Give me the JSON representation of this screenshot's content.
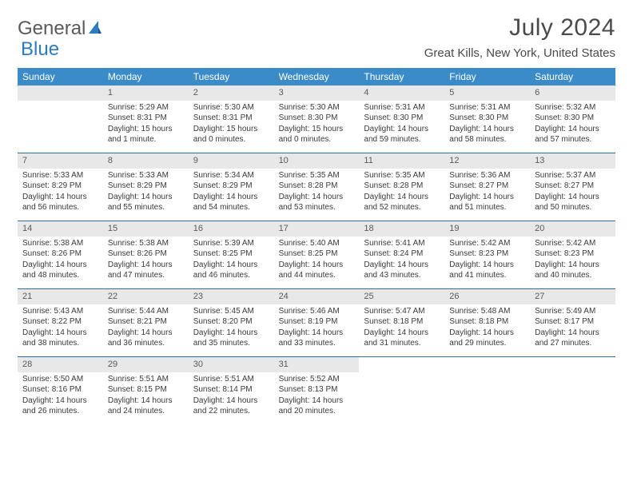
{
  "logo": {
    "part1": "General",
    "part2": "Blue"
  },
  "title": "July 2024",
  "location": "Great Kills, New York, United States",
  "colors": {
    "header_bg": "#3b8bc9",
    "header_text": "#ffffff",
    "daynum_bg": "#e8e8e8",
    "week_divider": "#2e6da8",
    "text": "#3a3a3a",
    "logo_blue": "#2e7cc0",
    "logo_gray": "#5a5a5a"
  },
  "days_of_week": [
    "Sunday",
    "Monday",
    "Tuesday",
    "Wednesday",
    "Thursday",
    "Friday",
    "Saturday"
  ],
  "weeks": [
    [
      {
        "n": "",
        "sun": "",
        "set": "",
        "dl": ""
      },
      {
        "n": "1",
        "sun": "Sunrise: 5:29 AM",
        "set": "Sunset: 8:31 PM",
        "dl": "Daylight: 15 hours and 1 minute."
      },
      {
        "n": "2",
        "sun": "Sunrise: 5:30 AM",
        "set": "Sunset: 8:31 PM",
        "dl": "Daylight: 15 hours and 0 minutes."
      },
      {
        "n": "3",
        "sun": "Sunrise: 5:30 AM",
        "set": "Sunset: 8:30 PM",
        "dl": "Daylight: 15 hours and 0 minutes."
      },
      {
        "n": "4",
        "sun": "Sunrise: 5:31 AM",
        "set": "Sunset: 8:30 PM",
        "dl": "Daylight: 14 hours and 59 minutes."
      },
      {
        "n": "5",
        "sun": "Sunrise: 5:31 AM",
        "set": "Sunset: 8:30 PM",
        "dl": "Daylight: 14 hours and 58 minutes."
      },
      {
        "n": "6",
        "sun": "Sunrise: 5:32 AM",
        "set": "Sunset: 8:30 PM",
        "dl": "Daylight: 14 hours and 57 minutes."
      }
    ],
    [
      {
        "n": "7",
        "sun": "Sunrise: 5:33 AM",
        "set": "Sunset: 8:29 PM",
        "dl": "Daylight: 14 hours and 56 minutes."
      },
      {
        "n": "8",
        "sun": "Sunrise: 5:33 AM",
        "set": "Sunset: 8:29 PM",
        "dl": "Daylight: 14 hours and 55 minutes."
      },
      {
        "n": "9",
        "sun": "Sunrise: 5:34 AM",
        "set": "Sunset: 8:29 PM",
        "dl": "Daylight: 14 hours and 54 minutes."
      },
      {
        "n": "10",
        "sun": "Sunrise: 5:35 AM",
        "set": "Sunset: 8:28 PM",
        "dl": "Daylight: 14 hours and 53 minutes."
      },
      {
        "n": "11",
        "sun": "Sunrise: 5:35 AM",
        "set": "Sunset: 8:28 PM",
        "dl": "Daylight: 14 hours and 52 minutes."
      },
      {
        "n": "12",
        "sun": "Sunrise: 5:36 AM",
        "set": "Sunset: 8:27 PM",
        "dl": "Daylight: 14 hours and 51 minutes."
      },
      {
        "n": "13",
        "sun": "Sunrise: 5:37 AM",
        "set": "Sunset: 8:27 PM",
        "dl": "Daylight: 14 hours and 50 minutes."
      }
    ],
    [
      {
        "n": "14",
        "sun": "Sunrise: 5:38 AM",
        "set": "Sunset: 8:26 PM",
        "dl": "Daylight: 14 hours and 48 minutes."
      },
      {
        "n": "15",
        "sun": "Sunrise: 5:38 AM",
        "set": "Sunset: 8:26 PM",
        "dl": "Daylight: 14 hours and 47 minutes."
      },
      {
        "n": "16",
        "sun": "Sunrise: 5:39 AM",
        "set": "Sunset: 8:25 PM",
        "dl": "Daylight: 14 hours and 46 minutes."
      },
      {
        "n": "17",
        "sun": "Sunrise: 5:40 AM",
        "set": "Sunset: 8:25 PM",
        "dl": "Daylight: 14 hours and 44 minutes."
      },
      {
        "n": "18",
        "sun": "Sunrise: 5:41 AM",
        "set": "Sunset: 8:24 PM",
        "dl": "Daylight: 14 hours and 43 minutes."
      },
      {
        "n": "19",
        "sun": "Sunrise: 5:42 AM",
        "set": "Sunset: 8:23 PM",
        "dl": "Daylight: 14 hours and 41 minutes."
      },
      {
        "n": "20",
        "sun": "Sunrise: 5:42 AM",
        "set": "Sunset: 8:23 PM",
        "dl": "Daylight: 14 hours and 40 minutes."
      }
    ],
    [
      {
        "n": "21",
        "sun": "Sunrise: 5:43 AM",
        "set": "Sunset: 8:22 PM",
        "dl": "Daylight: 14 hours and 38 minutes."
      },
      {
        "n": "22",
        "sun": "Sunrise: 5:44 AM",
        "set": "Sunset: 8:21 PM",
        "dl": "Daylight: 14 hours and 36 minutes."
      },
      {
        "n": "23",
        "sun": "Sunrise: 5:45 AM",
        "set": "Sunset: 8:20 PM",
        "dl": "Daylight: 14 hours and 35 minutes."
      },
      {
        "n": "24",
        "sun": "Sunrise: 5:46 AM",
        "set": "Sunset: 8:19 PM",
        "dl": "Daylight: 14 hours and 33 minutes."
      },
      {
        "n": "25",
        "sun": "Sunrise: 5:47 AM",
        "set": "Sunset: 8:18 PM",
        "dl": "Daylight: 14 hours and 31 minutes."
      },
      {
        "n": "26",
        "sun": "Sunrise: 5:48 AM",
        "set": "Sunset: 8:18 PM",
        "dl": "Daylight: 14 hours and 29 minutes."
      },
      {
        "n": "27",
        "sun": "Sunrise: 5:49 AM",
        "set": "Sunset: 8:17 PM",
        "dl": "Daylight: 14 hours and 27 minutes."
      }
    ],
    [
      {
        "n": "28",
        "sun": "Sunrise: 5:50 AM",
        "set": "Sunset: 8:16 PM",
        "dl": "Daylight: 14 hours and 26 minutes."
      },
      {
        "n": "29",
        "sun": "Sunrise: 5:51 AM",
        "set": "Sunset: 8:15 PM",
        "dl": "Daylight: 14 hours and 24 minutes."
      },
      {
        "n": "30",
        "sun": "Sunrise: 5:51 AM",
        "set": "Sunset: 8:14 PM",
        "dl": "Daylight: 14 hours and 22 minutes."
      },
      {
        "n": "31",
        "sun": "Sunrise: 5:52 AM",
        "set": "Sunset: 8:13 PM",
        "dl": "Daylight: 14 hours and 20 minutes."
      },
      {
        "n": "",
        "sun": "",
        "set": "",
        "dl": ""
      },
      {
        "n": "",
        "sun": "",
        "set": "",
        "dl": ""
      },
      {
        "n": "",
        "sun": "",
        "set": "",
        "dl": ""
      }
    ]
  ]
}
